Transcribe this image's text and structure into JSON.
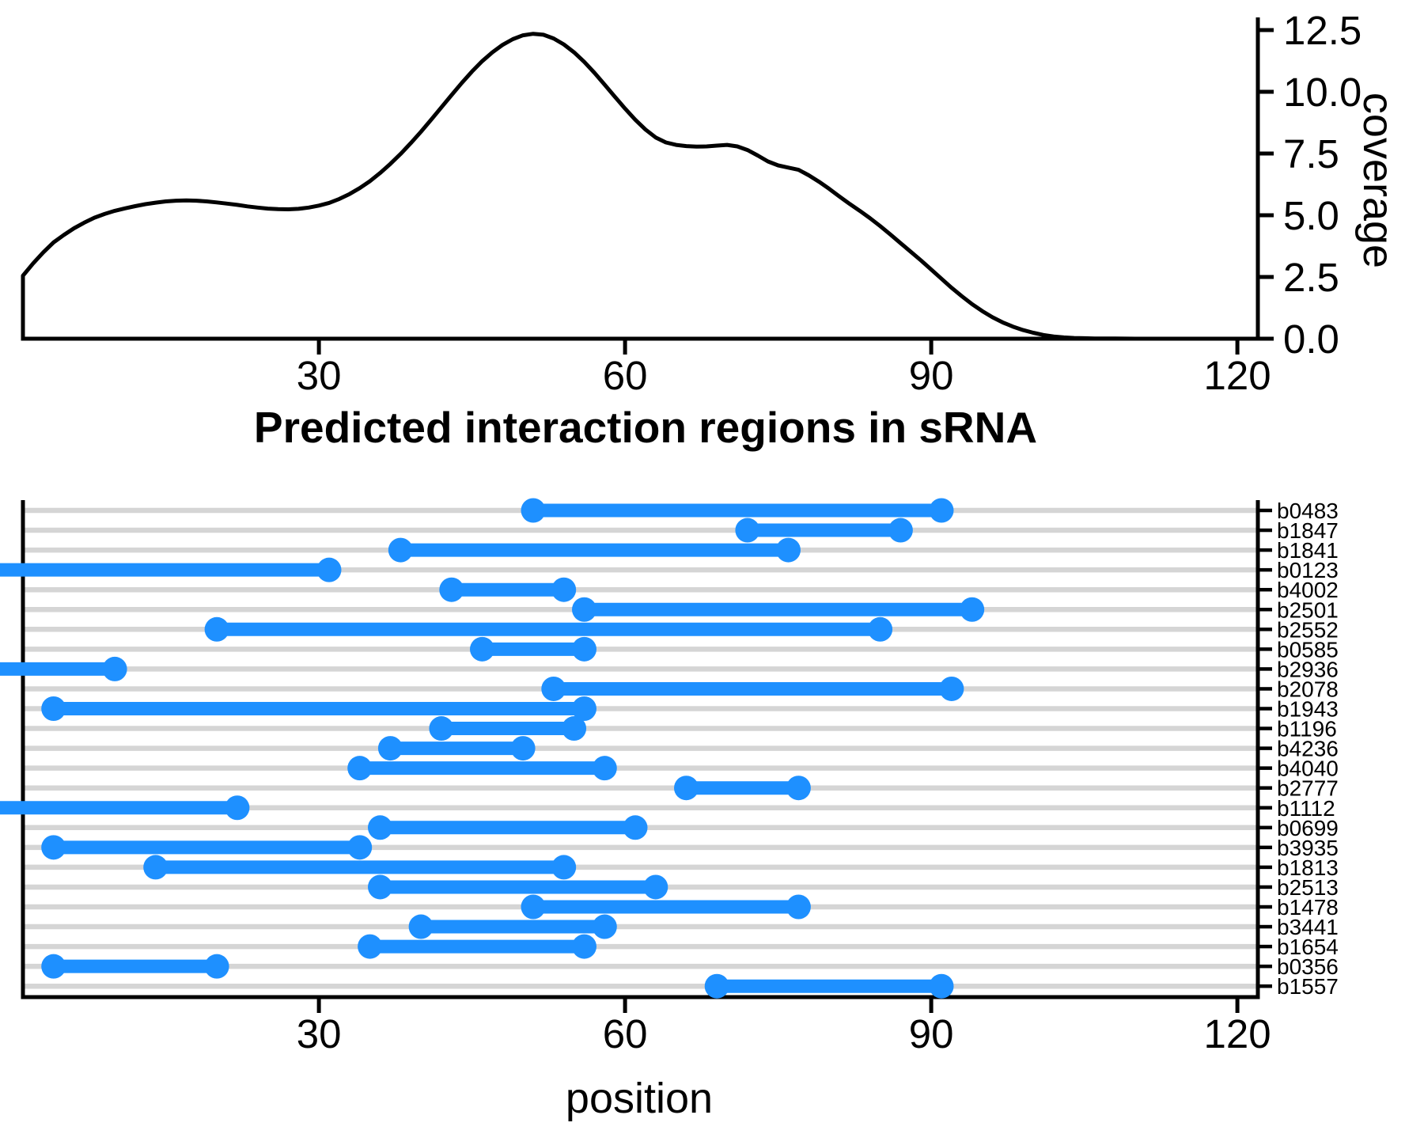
{
  "chart_data": [
    {
      "type": "area",
      "role": "coverage-density-panel",
      "title": "",
      "ylabel": "coverage",
      "xlabel": "",
      "x_ticks": [
        30,
        60,
        90,
        120
      ],
      "y_tick_labels": [
        "0.0",
        "2.5",
        "5.0",
        "7.5",
        "10.0",
        "12.5"
      ],
      "xlim": [
        1,
        122
      ],
      "ylim": [
        0,
        12.5
      ],
      "grid": "off",
      "line_color": "#000000",
      "curve_points": [
        [
          1,
          0
        ],
        [
          1,
          2.55
        ],
        [
          2,
          3.05
        ],
        [
          3,
          3.5
        ],
        [
          4,
          3.9
        ],
        [
          5,
          4.2
        ],
        [
          6,
          4.47
        ],
        [
          7,
          4.7
        ],
        [
          8,
          4.9
        ],
        [
          9,
          5.05
        ],
        [
          10,
          5.18
        ],
        [
          11,
          5.28
        ],
        [
          12,
          5.37
        ],
        [
          13,
          5.45
        ],
        [
          14,
          5.51
        ],
        [
          15,
          5.56
        ],
        [
          16,
          5.59
        ],
        [
          17,
          5.6
        ],
        [
          18,
          5.59
        ],
        [
          19,
          5.56
        ],
        [
          20,
          5.52
        ],
        [
          21,
          5.47
        ],
        [
          22,
          5.42
        ],
        [
          23,
          5.36
        ],
        [
          24,
          5.31
        ],
        [
          25,
          5.27
        ],
        [
          26,
          5.25
        ],
        [
          27,
          5.24
        ],
        [
          28,
          5.26
        ],
        [
          29,
          5.31
        ],
        [
          30,
          5.39
        ],
        [
          31,
          5.5
        ],
        [
          32,
          5.66
        ],
        [
          33,
          5.86
        ],
        [
          34,
          6.1
        ],
        [
          35,
          6.38
        ],
        [
          36,
          6.71
        ],
        [
          37,
          7.08
        ],
        [
          38,
          7.48
        ],
        [
          39,
          7.92
        ],
        [
          40,
          8.38
        ],
        [
          41,
          8.87
        ],
        [
          42,
          9.37
        ],
        [
          43,
          9.87
        ],
        [
          44,
          10.36
        ],
        [
          45,
          10.82
        ],
        [
          46,
          11.24
        ],
        [
          47,
          11.6
        ],
        [
          48,
          11.9
        ],
        [
          49,
          12.13
        ],
        [
          50,
          12.29
        ],
        [
          51,
          12.35
        ],
        [
          52,
          12.31
        ],
        [
          53,
          12.16
        ],
        [
          54,
          11.92
        ],
        [
          55,
          11.6
        ],
        [
          56,
          11.21
        ],
        [
          57,
          10.77
        ],
        [
          58,
          10.29
        ],
        [
          59,
          9.8
        ],
        [
          60,
          9.32
        ],
        [
          61,
          8.87
        ],
        [
          62,
          8.47
        ],
        [
          63,
          8.15
        ],
        [
          64,
          7.95
        ],
        [
          65,
          7.85
        ],
        [
          66,
          7.8
        ],
        [
          67,
          7.78
        ],
        [
          68,
          7.79
        ],
        [
          69,
          7.82
        ],
        [
          70,
          7.85
        ],
        [
          71,
          7.79
        ],
        [
          72,
          7.64
        ],
        [
          73,
          7.42
        ],
        [
          74,
          7.18
        ],
        [
          75,
          7.02
        ],
        [
          76,
          6.93
        ],
        [
          77,
          6.84
        ],
        [
          78,
          6.62
        ],
        [
          79,
          6.36
        ],
        [
          80,
          6.07
        ],
        [
          81,
          5.76
        ],
        [
          82,
          5.46
        ],
        [
          83,
          5.18
        ],
        [
          84,
          4.88
        ],
        [
          85,
          4.56
        ],
        [
          86,
          4.22
        ],
        [
          87,
          3.87
        ],
        [
          88,
          3.52
        ],
        [
          89,
          3.17
        ],
        [
          90,
          2.8
        ],
        [
          91,
          2.43
        ],
        [
          92,
          2.06
        ],
        [
          93,
          1.72
        ],
        [
          94,
          1.4
        ],
        [
          95,
          1.12
        ],
        [
          96,
          0.87
        ],
        [
          97,
          0.66
        ],
        [
          98,
          0.49
        ],
        [
          99,
          0.35
        ],
        [
          100,
          0.24
        ],
        [
          101,
          0.15
        ],
        [
          102,
          0.09
        ],
        [
          103,
          0.05
        ],
        [
          104,
          0.03
        ],
        [
          105,
          0.02
        ],
        [
          106,
          0.01
        ],
        [
          108,
          0.01
        ],
        [
          110,
          0
        ],
        [
          122,
          0
        ]
      ]
    },
    {
      "type": "segment-range",
      "role": "interaction-regions-panel",
      "title": "Predicted interaction regions in sRNA",
      "xlabel": "position",
      "x_ticks": [
        30,
        60,
        90,
        120
      ],
      "xlim": [
        1,
        122
      ],
      "grid": "horizontal",
      "segment_color": "#1E90FF",
      "gridline_color": "#D5D5D5",
      "segments": [
        {
          "label": "b0483",
          "start": 51,
          "end": 91
        },
        {
          "label": "b1847",
          "start": 72,
          "end": 87
        },
        {
          "label": "b1841",
          "start": 38,
          "end": 76
        },
        {
          "label": "b0123",
          "start": 1,
          "end": 31,
          "start_clipped": true
        },
        {
          "label": "b4002",
          "start": 43,
          "end": 54
        },
        {
          "label": "b2501",
          "start": 56,
          "end": 94
        },
        {
          "label": "b2552",
          "start": 20,
          "end": 85
        },
        {
          "label": "b0585",
          "start": 46,
          "end": 56
        },
        {
          "label": "b2936",
          "start": 1,
          "end": 10,
          "start_clipped": true
        },
        {
          "label": "b2078",
          "start": 53,
          "end": 92
        },
        {
          "label": "b1943",
          "start": 4,
          "end": 56
        },
        {
          "label": "b1196",
          "start": 42,
          "end": 55
        },
        {
          "label": "b4236",
          "start": 37,
          "end": 50
        },
        {
          "label": "b4040",
          "start": 34,
          "end": 58
        },
        {
          "label": "b2777",
          "start": 66,
          "end": 77
        },
        {
          "label": "b1112",
          "start": 1,
          "end": 22,
          "start_clipped": true
        },
        {
          "label": "b0699",
          "start": 36,
          "end": 61
        },
        {
          "label": "b3935",
          "start": 4,
          "end": 34
        },
        {
          "label": "b1813",
          "start": 14,
          "end": 54
        },
        {
          "label": "b2513",
          "start": 36,
          "end": 63
        },
        {
          "label": "b1478",
          "start": 51,
          "end": 77
        },
        {
          "label": "b3441",
          "start": 40,
          "end": 58
        },
        {
          "label": "b1654",
          "start": 35,
          "end": 56
        },
        {
          "label": "b0356",
          "start": 4,
          "end": 20
        },
        {
          "label": "b1557",
          "start": 69,
          "end": 91
        }
      ]
    }
  ],
  "colors": {
    "segment_blue": "#1E90FF",
    "gridline_gray": "#D5D5D5",
    "curve_black": "#000000",
    "background": "#FFFFFF"
  }
}
